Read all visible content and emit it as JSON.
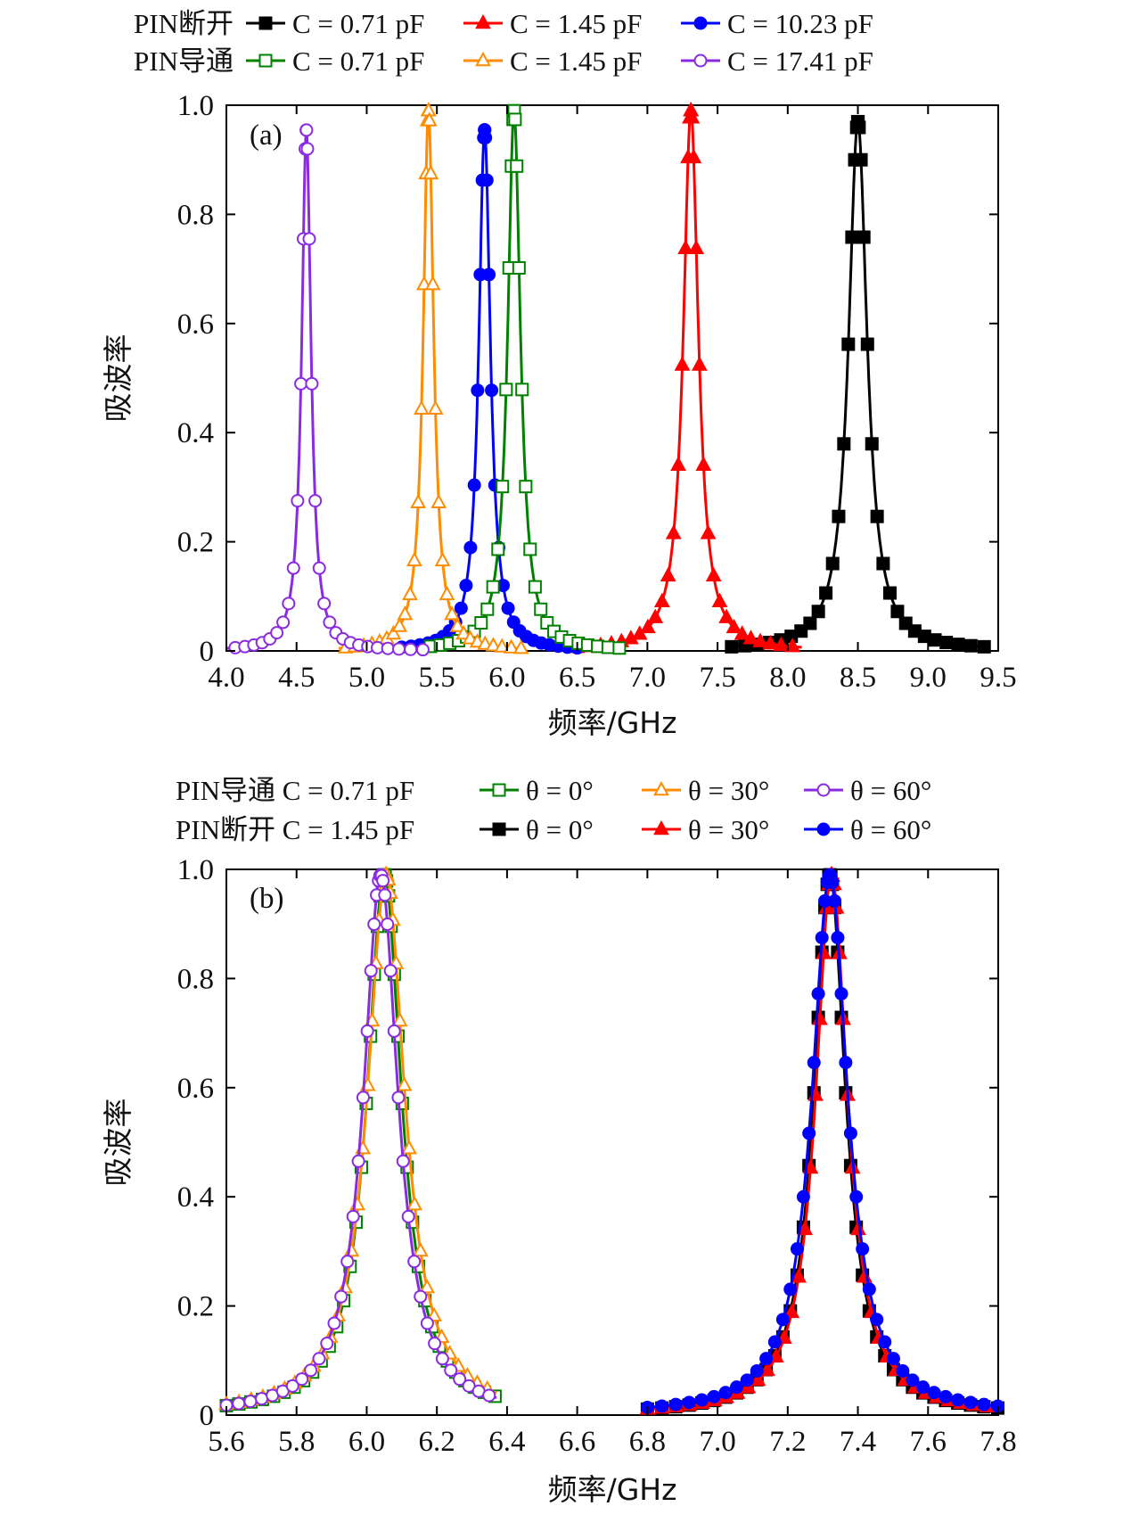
{
  "chart_data": [
    {
      "type": "line",
      "panel_label": "(a)",
      "xlabel": "频率/GHz",
      "ylabel": "吸波率",
      "xlim": [
        4.0,
        9.5
      ],
      "ylim": [
        0,
        1.0
      ],
      "xticks": [
        "4.0",
        "4.5",
        "5.0",
        "5.5",
        "6.0",
        "6.5",
        "7.0",
        "7.5",
        "8.0",
        "8.5",
        "9.0",
        "9.5"
      ],
      "yticks": [
        "0",
        "0.2",
        "0.4",
        "0.6",
        "0.8",
        "1.0"
      ],
      "legend_rows": [
        {
          "label": "PIN断开",
          "entries": [
            "C = 0.71 pF",
            "C = 1.45 pF",
            "C = 10.23 pF"
          ]
        },
        {
          "label": "PIN导通",
          "entries": [
            "C = 0.71 pF",
            "C = 1.45 pF",
            "C = 17.41 pF"
          ]
        }
      ],
      "series": [
        {
          "name": "PIN断开 C = 0.71 pF",
          "color": "#000000",
          "marker": "square-filled",
          "peak_x": 8.5,
          "peak_y": 0.97,
          "width": 0.08,
          "x_range": [
            7.6,
            9.4
          ]
        },
        {
          "name": "PIN断开 C = 1.45 pF",
          "color": "#ff0000",
          "marker": "triangle-filled",
          "peak_x": 7.31,
          "peak_y": 0.99,
          "width": 0.065,
          "x_range": [
            6.5,
            8.1
          ]
        },
        {
          "name": "PIN断开 C = 10.23 pF",
          "color": "#0000ff",
          "marker": "circle-filled",
          "peak_x": 5.84,
          "peak_y": 0.955,
          "width": 0.05,
          "x_range": [
            5.2,
            6.5
          ]
        },
        {
          "name": "PIN导通 C = 0.71 pF",
          "color": "#008000",
          "marker": "square-open",
          "peak_x": 6.05,
          "peak_y": 0.99,
          "width": 0.055,
          "x_range": [
            5.4,
            6.8
          ]
        },
        {
          "name": "PIN导通 C = 1.45 pF",
          "color": "#ff8c00",
          "marker": "triangle-open",
          "peak_x": 5.44,
          "peak_y": 0.99,
          "width": 0.045,
          "x_range": [
            4.8,
            6.1
          ]
        },
        {
          "name": "PIN导通 C = 17.41 pF",
          "color": "#8a2be2",
          "marker": "circle-open",
          "peak_x": 4.57,
          "peak_y": 0.955,
          "width": 0.04,
          "x_range": [
            4.0,
            5.4
          ]
        }
      ]
    },
    {
      "type": "line",
      "panel_label": "(b)",
      "xlabel": "频率/GHz",
      "ylabel": "吸波率",
      "xlim": [
        5.6,
        7.8
      ],
      "ylim": [
        0,
        1.0
      ],
      "xticks": [
        "5.6",
        "5.8",
        "6.0",
        "6.2",
        "6.4",
        "6.6",
        "6.8",
        "7.0",
        "7.2",
        "7.4",
        "7.6",
        "7.8"
      ],
      "yticks": [
        "0",
        "0.2",
        "0.4",
        "0.6",
        "0.8",
        "1.0"
      ],
      "legend_rows": [
        {
          "label": "PIN导通 C = 0.71 pF",
          "entries": [
            "θ = 0°",
            "θ = 30°",
            "θ = 60°"
          ]
        },
        {
          "label": "PIN断开 C = 1.45 pF",
          "entries": [
            "θ = 0°",
            "θ = 30°",
            "θ = 60°"
          ]
        }
      ],
      "series": [
        {
          "name": "PIN导通 θ = 0°",
          "color": "#008000",
          "marker": "square-open",
          "peak_x": 6.05,
          "peak_y": 0.99,
          "width": 0.06,
          "x_range": [
            5.6,
            6.37
          ]
        },
        {
          "name": "PIN导通 θ = 30°",
          "color": "#ff8c00",
          "marker": "triangle-open",
          "peak_x": 6.055,
          "peak_y": 0.99,
          "width": 0.065,
          "x_range": [
            5.6,
            6.37
          ]
        },
        {
          "name": "PIN导通 θ = 60°",
          "color": "#8a2be2",
          "marker": "circle-open",
          "peak_x": 6.04,
          "peak_y": 0.99,
          "width": 0.06,
          "x_range": [
            5.6,
            6.37
          ]
        },
        {
          "name": "PIN断开 θ = 0°",
          "color": "#000000",
          "marker": "square-filled",
          "peak_x": 7.32,
          "peak_y": 0.99,
          "width": 0.055,
          "x_range": [
            6.8,
            7.8
          ]
        },
        {
          "name": "PIN断开 θ = 30°",
          "color": "#ff0000",
          "marker": "triangle-filled",
          "peak_x": 7.325,
          "peak_y": 0.99,
          "width": 0.055,
          "x_range": [
            6.8,
            7.8
          ]
        },
        {
          "name": "PIN断开 θ = 60°",
          "color": "#0000ff",
          "marker": "circle-filled",
          "peak_x": 7.32,
          "peak_y": 0.99,
          "width": 0.062,
          "x_range": [
            6.8,
            7.8
          ]
        }
      ]
    }
  ]
}
